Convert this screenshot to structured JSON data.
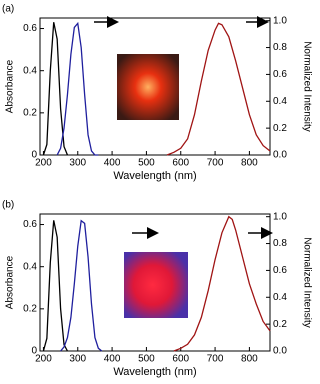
{
  "chart_data": [
    {
      "type": "line",
      "panel_label": "(a)",
      "x_label": "Wavelength (nm)",
      "y_label": "Absorbance",
      "y2_label": "Normalized Intensity",
      "xlim": [
        190,
        860
      ],
      "xticks": [
        200,
        300,
        400,
        500,
        600,
        700,
        800
      ],
      "ylim": [
        0,
        0.65
      ],
      "yticks": [
        0,
        0.2,
        0.4,
        0.6
      ],
      "y2lim": [
        0,
        1.02
      ],
      "y2ticks": [
        {
          "value": 0,
          "label": "0.0"
        },
        0.2,
        0.4,
        0.6,
        0.8,
        {
          "value": 1,
          "label": "1.0"
        }
      ],
      "series": [
        {
          "color": "#000000",
          "x": [
            200,
            210,
            220,
            230,
            240,
            250,
            260,
            270
          ],
          "values": [
            0.0,
            0.05,
            0.4,
            0.63,
            0.55,
            0.22,
            0.04,
            0.0
          ]
        },
        {
          "color": "#1f1f9e",
          "axis": "y2",
          "x": [
            240,
            250,
            260,
            270,
            280,
            290,
            300,
            310,
            320,
            330,
            340,
            350,
            360
          ],
          "values": [
            0,
            0.05,
            0.2,
            0.45,
            0.75,
            0.95,
            0.98,
            0.8,
            0.45,
            0.15,
            0.03,
            0,
            0
          ]
        },
        {
          "color": "#a01414",
          "axis": "y2",
          "x": [
            560,
            580,
            600,
            620,
            640,
            660,
            680,
            700,
            710,
            720,
            740,
            760,
            780,
            800,
            820,
            840,
            860
          ],
          "values": [
            0,
            0.02,
            0.05,
            0.12,
            0.3,
            0.55,
            0.78,
            0.93,
            0.98,
            0.97,
            0.88,
            0.7,
            0.5,
            0.3,
            0.15,
            0.07,
            0.03
          ]
        }
      ]
    },
    {
      "type": "line",
      "panel_label": "(b)",
      "x_label": "Wavelength (nm)",
      "y_label": "Absorbance",
      "y2_label": "Normalized Intensity",
      "xlim": [
        190,
        860
      ],
      "xticks": [
        200,
        300,
        400,
        500,
        600,
        700,
        800
      ],
      "ylim": [
        0,
        0.65
      ],
      "yticks": [
        0,
        0.2,
        0.4,
        0.6
      ],
      "y2lim": [
        0,
        1.02
      ],
      "y2ticks": [
        {
          "value": 0,
          "label": "0.0"
        },
        0.2,
        0.4,
        0.6,
        0.8,
        {
          "value": 1,
          "label": "1.0"
        }
      ],
      "series": [
        {
          "color": "#000000",
          "x": [
            200,
            210,
            220,
            230,
            240,
            250,
            260,
            270
          ],
          "values": [
            0.0,
            0.06,
            0.42,
            0.62,
            0.54,
            0.2,
            0.03,
            0.0
          ]
        },
        {
          "color": "#1f1f9e",
          "axis": "y2",
          "x": [
            250,
            260,
            270,
            280,
            290,
            300,
            310,
            320,
            330,
            340,
            350,
            360,
            370
          ],
          "values": [
            0,
            0.03,
            0.1,
            0.25,
            0.5,
            0.78,
            0.97,
            0.95,
            0.7,
            0.35,
            0.1,
            0.02,
            0
          ]
        },
        {
          "color": "#a01414",
          "axis": "y2",
          "x": [
            580,
            600,
            620,
            640,
            660,
            680,
            700,
            720,
            740,
            750,
            760,
            780,
            800,
            820,
            840,
            860
          ],
          "values": [
            0,
            0.02,
            0.05,
            0.12,
            0.25,
            0.45,
            0.68,
            0.88,
            1.0,
            0.98,
            0.9,
            0.7,
            0.5,
            0.35,
            0.22,
            0.15
          ]
        }
      ]
    }
  ]
}
